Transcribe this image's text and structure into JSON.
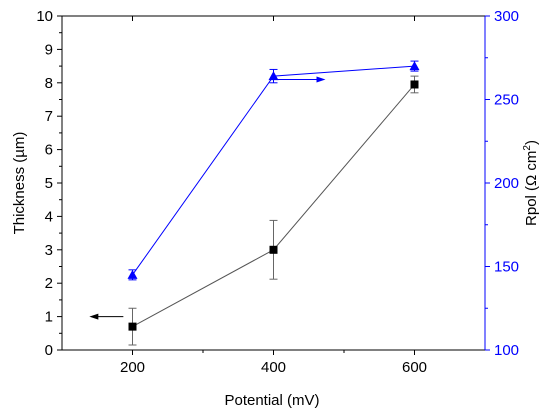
{
  "chart_data": {
    "type": "line",
    "title": "",
    "xlabel": "Potential (mV)",
    "ylabel_left": "Thickness (µm)",
    "ylabel_right": "Rpol (Ω cm²)",
    "ylabel_right_parts": [
      "Rpol (Ω cm",
      "2",
      ")"
    ],
    "ylabel_left_parts": [
      "Thickness (",
      "µ",
      "m)"
    ],
    "x": [
      200,
      400,
      600
    ],
    "x_ticks": [
      200,
      400,
      600
    ],
    "xlim": [
      100,
      700
    ],
    "ylim_left": [
      0,
      10
    ],
    "ylim_right": [
      100,
      300
    ],
    "y_ticks_left": [
      0,
      1,
      2,
      3,
      4,
      5,
      6,
      7,
      8,
      9,
      10
    ],
    "y_ticks_right": [
      100,
      150,
      200,
      250,
      300
    ],
    "grid": false,
    "series": [
      {
        "axis": "left",
        "marker": "square",
        "color": "#000000",
        "line_color": "#555555",
        "values": [
          0.7,
          3.0,
          7.95
        ],
        "error": [
          0.55,
          0.88,
          0.25
        ]
      },
      {
        "axis": "right",
        "marker": "triangle",
        "color": "#0000ff",
        "line_color": "#0000ff",
        "values": [
          145,
          264,
          270
        ],
        "error": [
          3,
          4,
          3
        ]
      }
    ],
    "axis_colors": {
      "left": "#000000",
      "right": "#0000ff"
    },
    "annotations": [
      {
        "type": "arrow",
        "points_to": "left-axis",
        "series": 0,
        "at_x": 170,
        "at_y": 1.0
      },
      {
        "type": "arrow",
        "points_to": "right-axis",
        "series": 1,
        "at_x": 400,
        "at_y": 8.1
      }
    ]
  }
}
